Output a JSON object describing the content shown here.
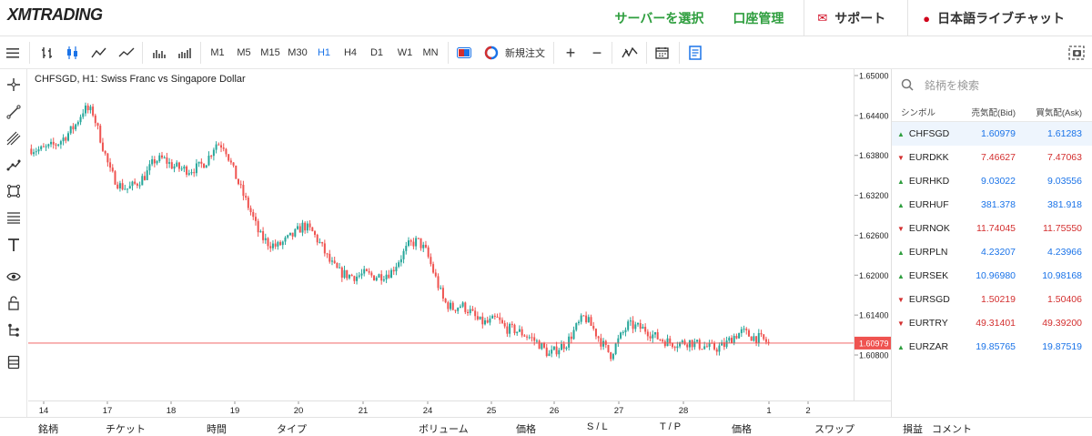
{
  "header": {
    "logo": "XMTRADING",
    "links": [
      {
        "label": "サーバーを選択",
        "style": "green"
      },
      {
        "label": "口座管理",
        "style": "green"
      },
      {
        "label": "サポート",
        "style": "dark",
        "icon": "mail-icon"
      },
      {
        "label": "日本語ライブチャット",
        "style": "dark",
        "icon": "chat-icon"
      }
    ]
  },
  "toolbar": {
    "timeframes": [
      "M1",
      "M5",
      "M15",
      "M30",
      "H1",
      "H4",
      "D1",
      "W1",
      "MN"
    ],
    "active_timeframe": "H1",
    "new_order": "新規注文",
    "plus": "+",
    "minus": "−"
  },
  "chart": {
    "title": "CHFSGD, H1: Swiss Franc vs Singapore Dollar",
    "current_price": "1.60979",
    "colors": {
      "up": "#26a69a",
      "down": "#ef5350",
      "price_line": "#ef5350"
    },
    "price_ticks": [
      "1.65000",
      "1.64400",
      "1.63800",
      "1.63200",
      "1.62600",
      "1.62000",
      "1.61400",
      "1.60800"
    ],
    "time_ticks": [
      "14",
      "17",
      "18",
      "19",
      "20",
      "21",
      "24",
      "25",
      "26",
      "27",
      "28",
      "1",
      "2"
    ]
  },
  "chart_data": {
    "type": "candlestick",
    "title": "CHFSGD, H1: Swiss Franc vs Singapore Dollar",
    "ylim": [
      1.6045,
      1.6505
    ],
    "x_ticks": [
      "14",
      "17",
      "18",
      "19",
      "20",
      "21",
      "24",
      "25",
      "26",
      "27",
      "28",
      "1",
      "2"
    ],
    "path_closes": [
      1.639,
      1.6388,
      1.6392,
      1.6398,
      1.641,
      1.6425,
      1.645,
      1.6445,
      1.64,
      1.6355,
      1.6335,
      1.633,
      1.6338,
      1.635,
      1.6372,
      1.6375,
      1.6365,
      1.636,
      1.6358,
      1.6362,
      1.6372,
      1.6398,
      1.6395,
      1.6358,
      1.6325,
      1.6295,
      1.626,
      1.6248,
      1.6243,
      1.6252,
      1.6262,
      1.6275,
      1.6265,
      1.6245,
      1.622,
      1.6205,
      1.62,
      1.6198,
      1.6202,
      1.6198,
      1.62,
      1.6205,
      1.6225,
      1.6245,
      1.6252,
      1.6235,
      1.6198,
      1.616,
      1.615,
      1.6155,
      1.6145,
      1.613,
      1.6128,
      1.6135,
      1.612,
      1.6118,
      1.6112,
      1.6105,
      1.6095,
      1.608,
      1.609,
      1.6098,
      1.612,
      1.6138,
      1.612,
      1.6098,
      1.608,
      1.6105,
      1.6125,
      1.6122,
      1.6118,
      1.6108,
      1.6102,
      1.6098,
      1.6098,
      1.61,
      1.6095,
      1.6092,
      1.609,
      1.6095,
      1.6108,
      1.6115,
      1.6108,
      1.6105,
      1.6098
    ],
    "last": 1.60979
  },
  "watchlist": {
    "search_placeholder": "銘柄を検索",
    "columns": [
      "シンボル",
      "売気配(Bid)",
      "買気配(Ask)"
    ],
    "rows": [
      {
        "symbol": "CHFSGD",
        "bid": "1.60979",
        "ask": "1.61283",
        "dir": "up",
        "color": "up"
      },
      {
        "symbol": "EURDKK",
        "bid": "7.46627",
        "ask": "7.47063",
        "dir": "dn",
        "color": "dn"
      },
      {
        "symbol": "EURHKD",
        "bid": "9.03022",
        "ask": "9.03556",
        "dir": "up",
        "color": "up"
      },
      {
        "symbol": "EURHUF",
        "bid": "381.378",
        "ask": "381.918",
        "dir": "up",
        "color": "up"
      },
      {
        "symbol": "EURNOK",
        "bid": "11.74045",
        "ask": "11.75550",
        "dir": "dn",
        "color": "dn"
      },
      {
        "symbol": "EURPLN",
        "bid": "4.23207",
        "ask": "4.23966",
        "dir": "up",
        "color": "up"
      },
      {
        "symbol": "EURSEK",
        "bid": "10.96980",
        "ask": "10.98168",
        "dir": "up",
        "color": "up"
      },
      {
        "symbol": "EURSGD",
        "bid": "1.50219",
        "ask": "1.50406",
        "dir": "dn",
        "color": "dn"
      },
      {
        "symbol": "EURTRY",
        "bid": "49.31401",
        "ask": "49.39200",
        "dir": "dn",
        "color": "dn"
      },
      {
        "symbol": "EURZAR",
        "bid": "19.85765",
        "ask": "19.87519",
        "dir": "up",
        "color": "up"
      }
    ]
  },
  "bottom": {
    "columns": [
      "銘柄",
      "チケット",
      "時間",
      "タイプ",
      "ボリューム",
      "価格",
      "S / L",
      "T / P",
      "価格",
      "スワップ",
      "損益",
      "コメント"
    ]
  }
}
